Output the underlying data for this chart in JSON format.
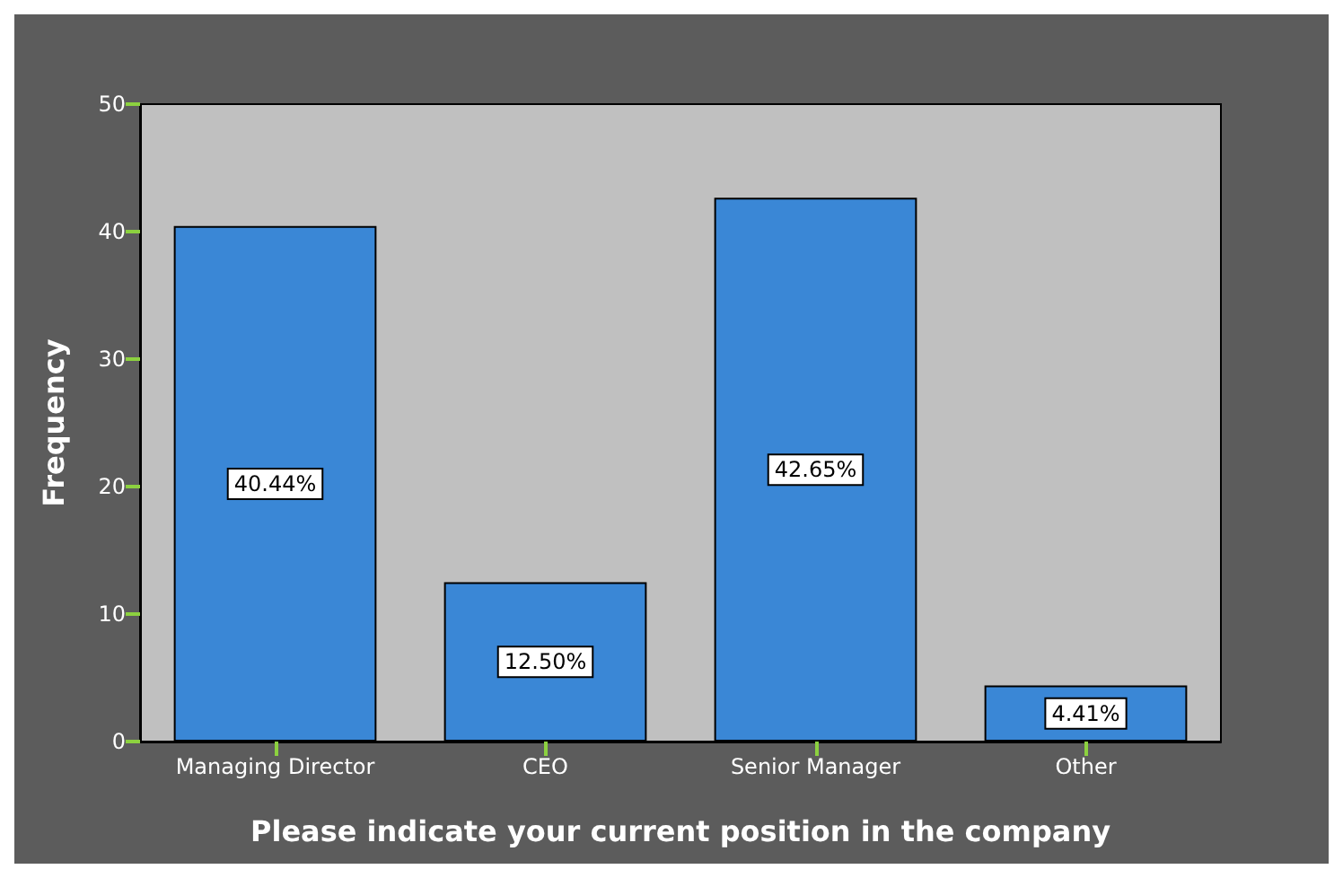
{
  "chart_data": {
    "type": "bar",
    "xlabel": "Please indicate your current position in the company",
    "ylabel": "Frequency",
    "categories": [
      "Managing Director",
      "CEO",
      "Senior Manager",
      "Other"
    ],
    "values": [
      40.44,
      12.5,
      42.65,
      4.41
    ],
    "value_labels": [
      "40.44%",
      "12.50%",
      "42.65%",
      "4.41%"
    ],
    "color": "#3a87d6",
    "ylim": [
      0,
      50
    ],
    "yticks": [
      0,
      10,
      20,
      30,
      40,
      50
    ],
    "grid": false
  }
}
